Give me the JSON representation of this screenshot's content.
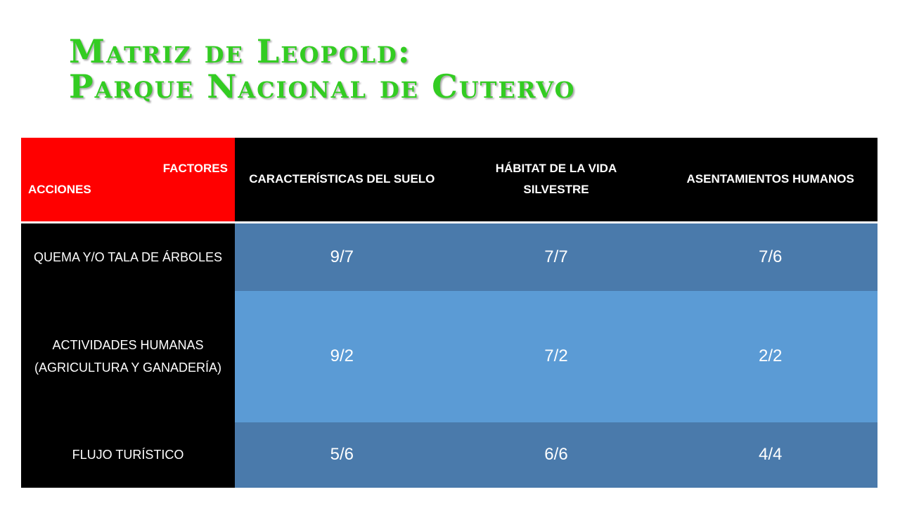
{
  "title": {
    "line1": "Matriz de Leopold:",
    "line2": "Parque Nacional de Cutervo"
  },
  "table": {
    "corner": {
      "factores": "FACTORES",
      "acciones": "ACCIONES"
    },
    "columns": [
      "CARACTERÍSTICAS DEL SUELO",
      "HÁBITAT DE LA VIDA SILVESTRE",
      "ASENTAMIENTOS HUMANOS"
    ],
    "rows": [
      {
        "label": "QUEMA Y/O TALA DE ÁRBOLES",
        "values": [
          "9/7",
          "7/7",
          "7/6"
        ]
      },
      {
        "label": "ACTIVIDADES HUMANAS (AGRICULTURA Y GANADERÍA)",
        "values": [
          "9/2",
          "7/2",
          "2/2"
        ]
      },
      {
        "label": "FLUJO TURÍSTICO",
        "values": [
          "5/6",
          "6/6",
          "4/4"
        ]
      }
    ]
  },
  "colors": {
    "title": "#33cc22",
    "corner": "#ff0000",
    "header": "#000000",
    "cell_dark": "#4a7aab",
    "cell_light": "#5b9bd5"
  }
}
